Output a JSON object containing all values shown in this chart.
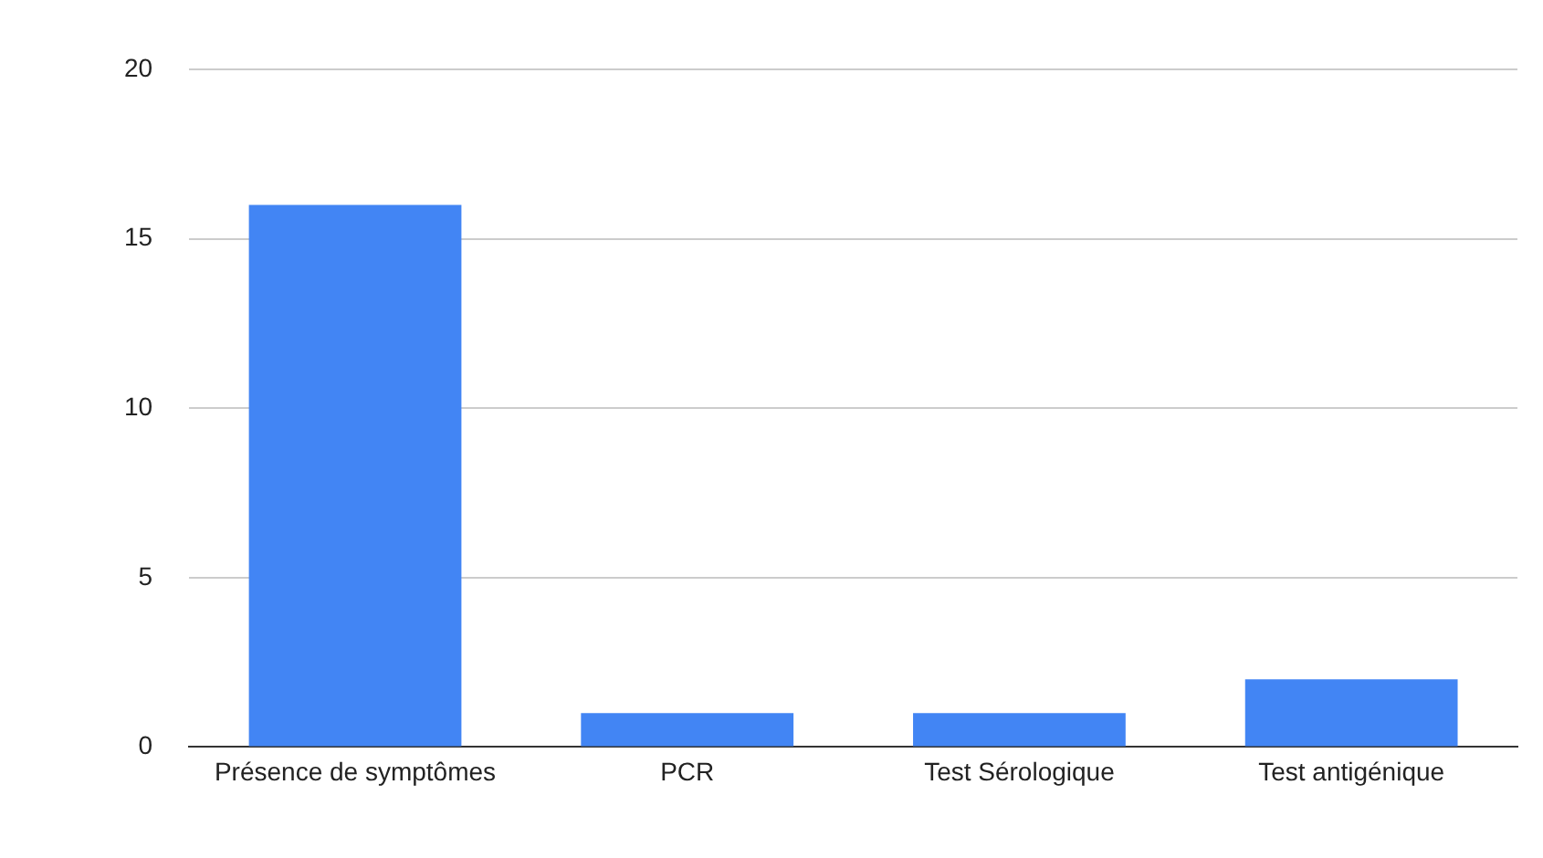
{
  "chart_data": {
    "type": "bar",
    "categories": [
      "Présence de symptômes",
      "PCR",
      "Test Sérologique",
      "Test antigénique"
    ],
    "values": [
      16,
      1,
      1,
      2
    ],
    "color": "#4285f4",
    "ylim": [
      0,
      20
    ],
    "yticks": [
      0,
      5,
      10,
      15,
      20
    ],
    "grid": "y",
    "legend": false
  }
}
